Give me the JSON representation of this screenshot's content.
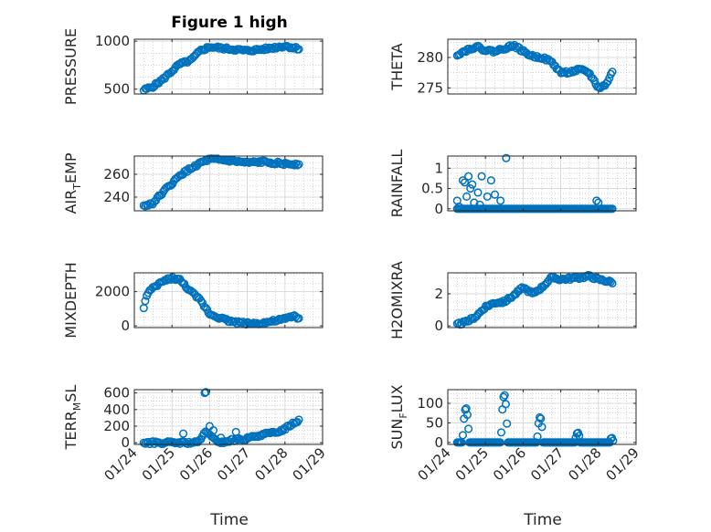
{
  "figure": {
    "title": "Figure 1 high"
  },
  "colors": {
    "marker": "#0072BD",
    "axis": "#262626",
    "grid": "#b8b8b8"
  },
  "chart_data": [
    {
      "type": "scatter",
      "title": "Figure 1 high",
      "ylabel": "PRESSURE",
      "xlabel": "",
      "ylim": [
        450,
        1020
      ],
      "yticks": [
        500,
        1000
      ],
      "ytick_labels": [
        "500",
        "1000"
      ],
      "xticks": [
        0,
        1,
        2,
        3,
        4,
        5
      ],
      "xtick_labels": [],
      "grid": true,
      "series": [
        {
          "x_start": 0.25,
          "x_end": 4.4,
          "knots": [
            [
              0.25,
              490
            ],
            [
              0.5,
              530
            ],
            [
              0.75,
              600
            ],
            [
              1.0,
              690
            ],
            [
              1.2,
              760
            ],
            [
              1.5,
              800
            ],
            [
              1.75,
              900
            ],
            [
              2.0,
              940
            ],
            [
              2.5,
              920
            ],
            [
              3.0,
              900
            ],
            [
              3.5,
              920
            ],
            [
              4.0,
              950
            ],
            [
              4.4,
              920
            ]
          ]
        }
      ]
    },
    {
      "type": "scatter",
      "title": "",
      "ylabel": "THETA",
      "xlabel": "",
      "ylim": [
        274,
        283
      ],
      "yticks": [
        275,
        280
      ],
      "ytick_labels": [
        "275",
        "280"
      ],
      "xticks": [
        0,
        1,
        2,
        3,
        4,
        5
      ],
      "xtick_labels": [],
      "grid": true,
      "series": [
        {
          "x_start": 0.25,
          "x_end": 4.4,
          "knots": [
            [
              0.25,
              280.5
            ],
            [
              0.5,
              281.2
            ],
            [
              0.75,
              281.8
            ],
            [
              1.0,
              281.2
            ],
            [
              1.25,
              281.0
            ],
            [
              1.5,
              281.5
            ],
            [
              1.75,
              282.0
            ],
            [
              2.0,
              281.0
            ],
            [
              2.25,
              280.2
            ],
            [
              2.5,
              280.0
            ],
            [
              2.75,
              279.3
            ],
            [
              3.0,
              277.5
            ],
            [
              3.25,
              277.6
            ],
            [
              3.5,
              278.0
            ],
            [
              3.75,
              277.5
            ],
            [
              4.0,
              275.0
            ],
            [
              4.2,
              275.5
            ],
            [
              4.35,
              277.5
            ]
          ]
        }
      ]
    },
    {
      "type": "scatter",
      "title": "",
      "ylabel": "AIR_TEMP",
      "ylabel_main": "AIR",
      "ylabel_sub": "T",
      "ylabel_rest": "EMP",
      "xlabel": "",
      "ylim": [
        228,
        276
      ],
      "yticks": [
        240,
        260
      ],
      "ytick_labels": [
        "240",
        "260"
      ],
      "xticks": [
        0,
        1,
        2,
        3,
        4,
        5
      ],
      "xtick_labels": [],
      "grid": true,
      "series": [
        {
          "x_start": 0.25,
          "x_end": 4.4,
          "knots": [
            [
              0.25,
              232
            ],
            [
              0.5,
              235
            ],
            [
              0.75,
              244
            ],
            [
              1.0,
              252
            ],
            [
              1.25,
              260
            ],
            [
              1.5,
              265
            ],
            [
              1.75,
              270
            ],
            [
              2.0,
              273
            ],
            [
              2.5,
              272
            ],
            [
              3.0,
              270
            ],
            [
              3.5,
              271
            ],
            [
              4.0,
              269
            ],
            [
              4.4,
              269
            ]
          ]
        }
      ]
    },
    {
      "type": "scatter",
      "title": "",
      "ylabel": "RAINFALL",
      "xlabel": "",
      "ylim": [
        -0.05,
        1.3
      ],
      "yticks": [
        0,
        0.5,
        1
      ],
      "ytick_labels": [
        "0",
        "0.5",
        "1"
      ],
      "xticks": [
        0,
        1,
        2,
        3,
        4,
        5
      ],
      "xtick_labels": [],
      "grid": true,
      "series": [
        {
          "x_start": 0.25,
          "x_end": 4.4,
          "baseline": 0,
          "points": [
            [
              0.25,
              0.2
            ],
            [
              0.3,
              0.05
            ],
            [
              0.4,
              0.7
            ],
            [
              0.45,
              0.65
            ],
            [
              0.5,
              0.3
            ],
            [
              0.55,
              0.8
            ],
            [
              0.6,
              0.5
            ],
            [
              0.65,
              0.6
            ],
            [
              0.7,
              0.15
            ],
            [
              0.8,
              0.4
            ],
            [
              0.85,
              0.1
            ],
            [
              0.9,
              0.8
            ],
            [
              1.05,
              0.3
            ],
            [
              1.15,
              0.7
            ],
            [
              1.25,
              0.35
            ],
            [
              1.4,
              0.2
            ],
            [
              1.55,
              1.25
            ],
            [
              3.95,
              0.2
            ],
            [
              4.0,
              0.15
            ]
          ]
        }
      ]
    },
    {
      "type": "scatter",
      "title": "",
      "ylabel": "MIXDEPTH",
      "xlabel": "",
      "ylim": [
        -100,
        3100
      ],
      "yticks": [
        0,
        2000
      ],
      "ytick_labels": [
        "0",
        "2000"
      ],
      "xticks": [
        0,
        1,
        2,
        3,
        4,
        5
      ],
      "xtick_labels": [],
      "grid": true,
      "series": [
        {
          "x_start": 0.25,
          "x_end": 4.4,
          "knots": [
            [
              0.25,
              1100
            ],
            [
              0.35,
              1900
            ],
            [
              0.5,
              2200
            ],
            [
              0.75,
              2600
            ],
            [
              1.0,
              2800
            ],
            [
              1.2,
              2700
            ],
            [
              1.5,
              2000
            ],
            [
              1.75,
              1500
            ],
            [
              2.0,
              700
            ],
            [
              2.25,
              500
            ],
            [
              2.5,
              300
            ],
            [
              2.75,
              200
            ],
            [
              3.0,
              150
            ],
            [
              3.25,
              150
            ],
            [
              3.5,
              200
            ],
            [
              3.75,
              300
            ],
            [
              4.0,
              400
            ],
            [
              4.25,
              600
            ],
            [
              4.4,
              400
            ]
          ]
        }
      ]
    },
    {
      "type": "scatter",
      "title": "",
      "ylabel": "H2OMIXRA",
      "xlabel": "",
      "ylim": [
        -0.1,
        3.3
      ],
      "yticks": [
        0,
        2
      ],
      "ytick_labels": [
        "0",
        "2"
      ],
      "xticks": [
        0,
        1,
        2,
        3,
        4,
        5
      ],
      "xtick_labels": [],
      "grid": true,
      "series": [
        {
          "x_start": 0.25,
          "x_end": 4.4,
          "knots": [
            [
              0.25,
              0.1
            ],
            [
              0.5,
              0.25
            ],
            [
              0.75,
              0.6
            ],
            [
              1.0,
              1.2
            ],
            [
              1.25,
              1.45
            ],
            [
              1.5,
              1.5
            ],
            [
              1.75,
              1.9
            ],
            [
              2.0,
              2.4
            ],
            [
              2.25,
              2.0
            ],
            [
              2.5,
              2.4
            ],
            [
              2.75,
              3.0
            ],
            [
              3.0,
              2.9
            ],
            [
              3.5,
              3.0
            ],
            [
              3.75,
              3.1
            ],
            [
              4.0,
              2.9
            ],
            [
              4.4,
              2.7
            ]
          ]
        }
      ]
    },
    {
      "type": "scatter",
      "title": "",
      "ylabel": "TERR_MSL",
      "ylabel_main": "TERR",
      "ylabel_sub": "M",
      "ylabel_rest": "SL",
      "xlabel": "Time",
      "ylim": [
        -20,
        640
      ],
      "yticks": [
        0,
        200,
        400,
        600
      ],
      "ytick_labels": [
        "0",
        "200",
        "400",
        "600"
      ],
      "xticks": [
        0,
        1,
        2,
        3,
        4,
        5
      ],
      "xtick_labels": [
        "01/24",
        "01/25",
        "01/26",
        "01/27",
        "01/28",
        "01/29"
      ],
      "grid": true,
      "series": [
        {
          "x_start": 0.25,
          "x_end": 4.4,
          "knots": [
            [
              0.25,
              0
            ],
            [
              1.6,
              0
            ],
            [
              1.75,
              20
            ],
            [
              1.9,
              150
            ],
            [
              2.05,
              60
            ],
            [
              2.3,
              0
            ],
            [
              2.6,
              30
            ],
            [
              3.0,
              50
            ],
            [
              3.4,
              100
            ],
            [
              3.75,
              120
            ],
            [
              4.0,
              170
            ],
            [
              4.2,
              230
            ],
            [
              4.4,
              280
            ]
          ],
          "extra": [
            [
              1.87,
              600
            ],
            [
              1.9,
              610
            ],
            [
              1.3,
              110
            ],
            [
              2.0,
              200
            ],
            [
              2.1,
              150
            ],
            [
              2.3,
              60
            ],
            [
              2.7,
              130
            ],
            [
              3.2,
              80
            ]
          ]
        }
      ]
    },
    {
      "type": "scatter",
      "title": "",
      "ylabel": "SUN_FLUX",
      "ylabel_main": "SUN",
      "ylabel_sub": "F",
      "ylabel_rest": "LUX",
      "xlabel": "Time",
      "ylim": [
        -5,
        135
      ],
      "yticks": [
        0,
        50,
        100
      ],
      "ytick_labels": [
        "0",
        "50",
        "100"
      ],
      "xticks": [
        0,
        1,
        2,
        3,
        4,
        5
      ],
      "xtick_labels": [
        "01/24",
        "01/25",
        "01/26",
        "01/27",
        "01/28",
        "01/29"
      ],
      "grid": true,
      "series": [
        {
          "x_start": 0.25,
          "x_end": 4.4,
          "bumps": [
            [
              0.48,
              88,
              0.09
            ],
            [
              1.5,
              122,
              0.09
            ],
            [
              2.45,
              65,
              0.08
            ],
            [
              3.45,
              25,
              0.07
            ],
            [
              4.35,
              12,
              0.05
            ]
          ]
        }
      ]
    }
  ]
}
